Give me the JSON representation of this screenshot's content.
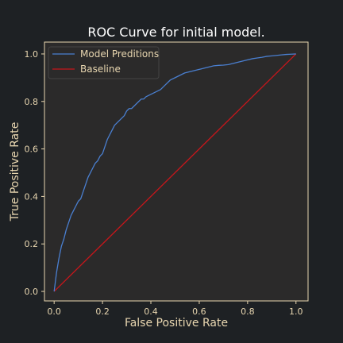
{
  "chart_data": {
    "type": "line",
    "title": "ROC Curve for initial model.",
    "xlabel": "False Positive Rate",
    "ylabel": "True Positive Rate",
    "xlim": [
      -0.04,
      1.05
    ],
    "ylim": [
      -0.04,
      1.05
    ],
    "xticks": [
      0.0,
      0.2,
      0.4,
      0.6,
      0.8,
      1.0
    ],
    "yticks": [
      0.0,
      0.2,
      0.4,
      0.6,
      0.8,
      1.0
    ],
    "tick_labels_x": [
      "0.0",
      "0.2",
      "0.4",
      "0.6",
      "0.8",
      "1.0"
    ],
    "tick_labels_y": [
      "0.0",
      "0.2",
      "0.4",
      "0.6",
      "0.8",
      "1.0"
    ],
    "grid": false,
    "legend": "top-left",
    "series": [
      {
        "name": "Model Preditions",
        "color": "#4a7fd0",
        "x": [
          0.0,
          0.005,
          0.01,
          0.015,
          0.02,
          0.03,
          0.04,
          0.05,
          0.06,
          0.07,
          0.08,
          0.09,
          0.1,
          0.11,
          0.12,
          0.13,
          0.14,
          0.15,
          0.16,
          0.17,
          0.18,
          0.19,
          0.2,
          0.21,
          0.22,
          0.23,
          0.24,
          0.25,
          0.26,
          0.27,
          0.28,
          0.29,
          0.3,
          0.31,
          0.32,
          0.33,
          0.34,
          0.35,
          0.36,
          0.37,
          0.38,
          0.4,
          0.42,
          0.44,
          0.46,
          0.48,
          0.5,
          0.52,
          0.54,
          0.56,
          0.58,
          0.6,
          0.62,
          0.64,
          0.66,
          0.68,
          0.7,
          0.72,
          0.74,
          0.76,
          0.78,
          0.8,
          0.82,
          0.84,
          0.86,
          0.88,
          0.9,
          0.92,
          0.94,
          0.96,
          0.98,
          1.0
        ],
        "y": [
          0.0,
          0.04,
          0.08,
          0.11,
          0.14,
          0.19,
          0.22,
          0.26,
          0.29,
          0.32,
          0.34,
          0.36,
          0.38,
          0.39,
          0.42,
          0.45,
          0.48,
          0.5,
          0.52,
          0.54,
          0.55,
          0.57,
          0.58,
          0.61,
          0.64,
          0.66,
          0.68,
          0.7,
          0.71,
          0.72,
          0.73,
          0.74,
          0.76,
          0.77,
          0.77,
          0.78,
          0.79,
          0.8,
          0.81,
          0.81,
          0.82,
          0.83,
          0.84,
          0.85,
          0.87,
          0.89,
          0.9,
          0.91,
          0.92,
          0.925,
          0.93,
          0.935,
          0.94,
          0.945,
          0.95,
          0.952,
          0.953,
          0.955,
          0.96,
          0.965,
          0.97,
          0.975,
          0.98,
          0.983,
          0.986,
          0.99,
          0.992,
          0.994,
          0.996,
          0.998,
          0.999,
          1.0
        ]
      },
      {
        "name": "Baseline",
        "color": "#c8161b",
        "x": [
          0.0,
          1.0
        ],
        "y": [
          0.0,
          1.0
        ]
      }
    ]
  }
}
